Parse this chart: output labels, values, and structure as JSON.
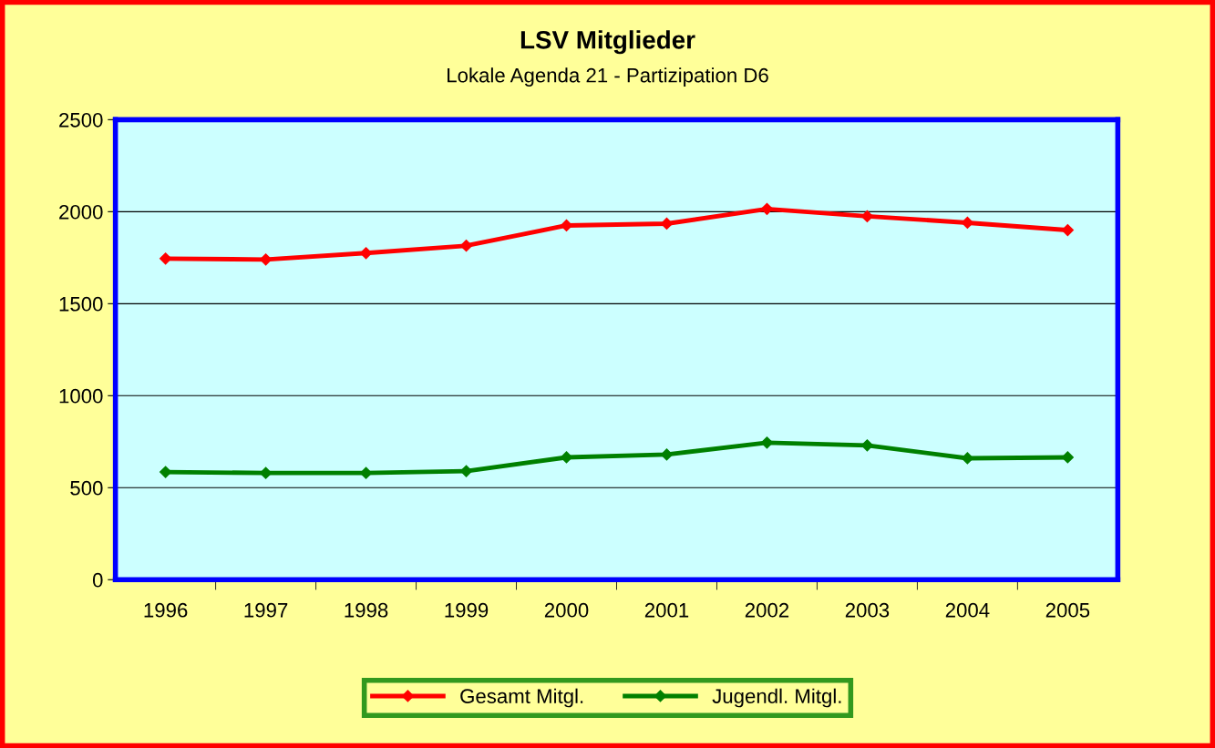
{
  "chart_data": {
    "type": "line",
    "title": "LSV Mitglieder",
    "subtitle": "Lokale Agenda 21 - Partizipation D6",
    "categories": [
      "1996",
      "1997",
      "1998",
      "1999",
      "2000",
      "2001",
      "2002",
      "2003",
      "2004",
      "2005"
    ],
    "series": [
      {
        "name": "Gesamt Mitgl.",
        "color": "#ff0000",
        "values": [
          1745,
          1740,
          1775,
          1815,
          1925,
          1935,
          2015,
          1975,
          1940,
          1900
        ]
      },
      {
        "name": "Jugendl. Mitgl.",
        "color": "#008000",
        "values": [
          585,
          580,
          580,
          590,
          665,
          680,
          745,
          730,
          660,
          665
        ]
      }
    ],
    "ylim": [
      0,
      2500
    ],
    "yticks": [
      0,
      500,
      1000,
      1500,
      2000,
      2500
    ],
    "grid": "y",
    "legend": "bottom",
    "marker": "diamond",
    "line_style": "solid"
  }
}
